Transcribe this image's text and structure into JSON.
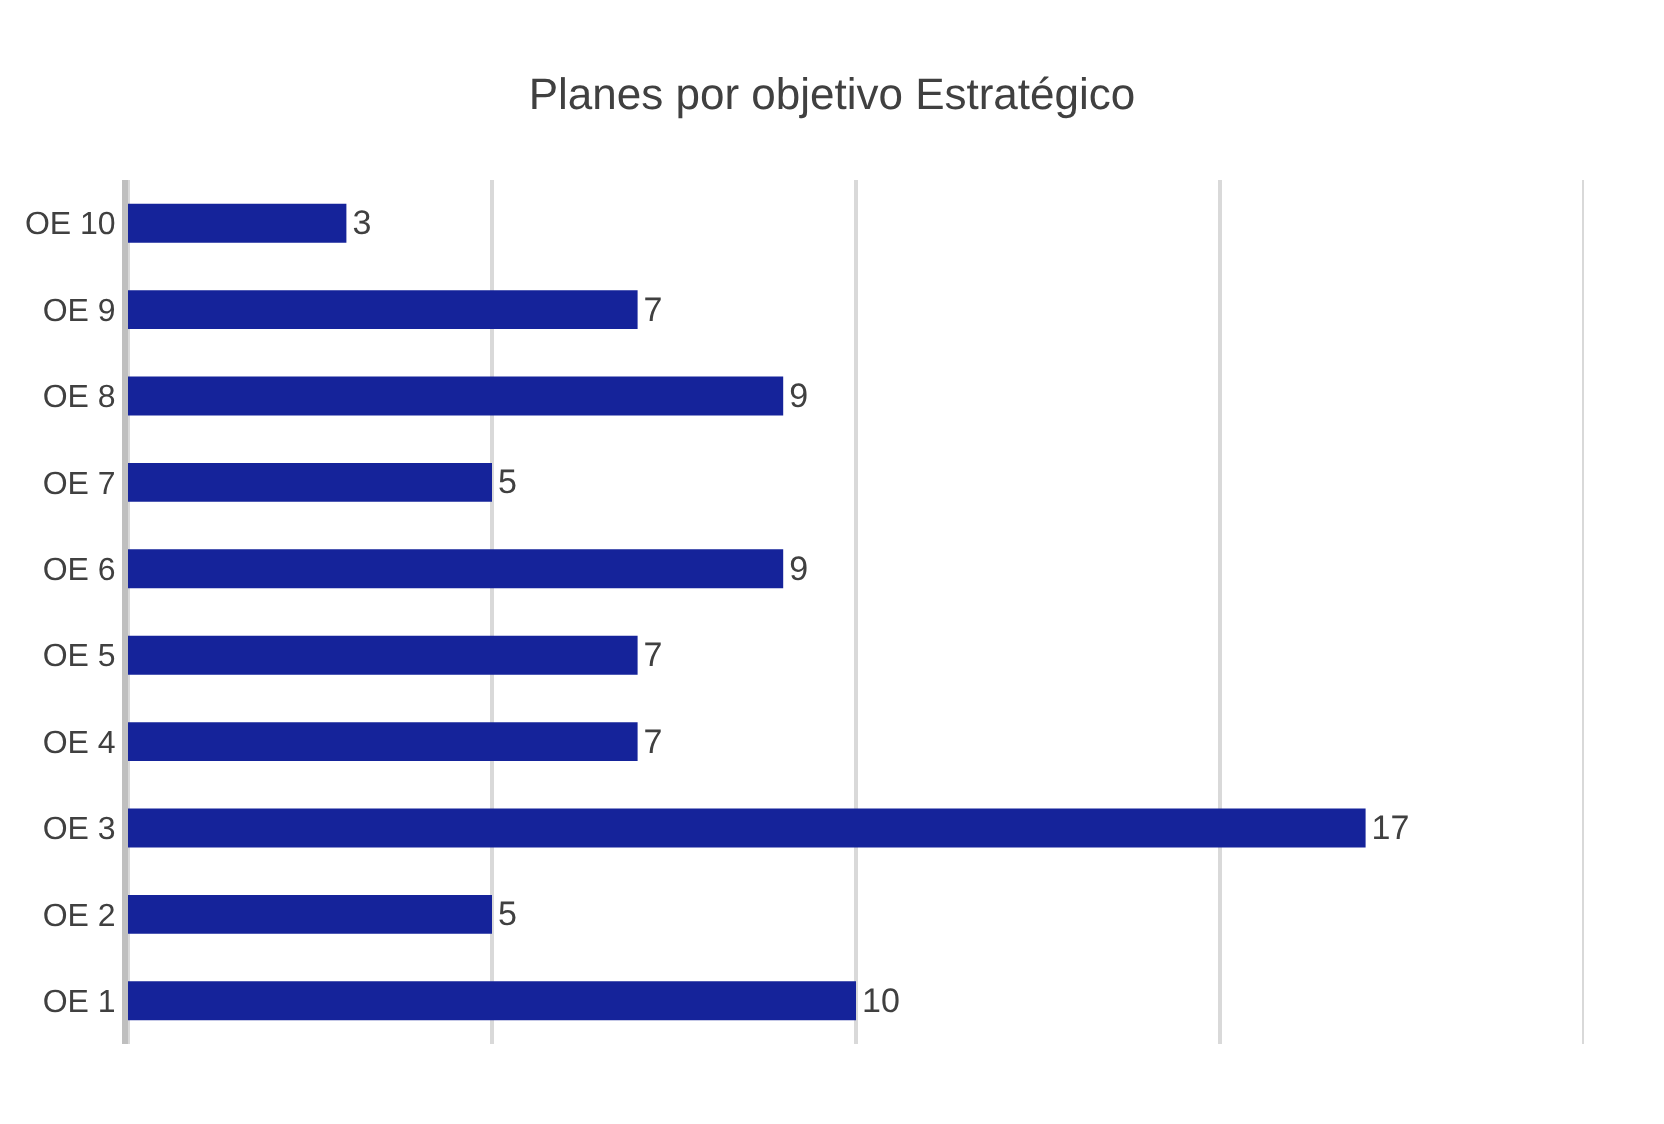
{
  "chart_data": {
    "type": "bar",
    "orientation": "horizontal",
    "title": "Planes por objetivo Estratégico",
    "categories": [
      "OE 10",
      "OE 9",
      "OE 8",
      "OE 7",
      "OE 6",
      "OE 5",
      "OE 4",
      "OE 3",
      "OE 2",
      "OE 1"
    ],
    "values": [
      3,
      7,
      9,
      5,
      9,
      7,
      7,
      17,
      5,
      10
    ],
    "color": "#15239a",
    "xlim": [
      0,
      20
    ],
    "xticks": [
      {
        "value": 0,
        "label": null
      },
      {
        "value": 5,
        "label": null
      },
      {
        "value": 10,
        "label": null
      },
      {
        "value": 15,
        "label": null
      },
      {
        "value": 20,
        "label": null
      }
    ],
    "tick_labels": "y",
    "grid": "x",
    "data_labels": true
  }
}
